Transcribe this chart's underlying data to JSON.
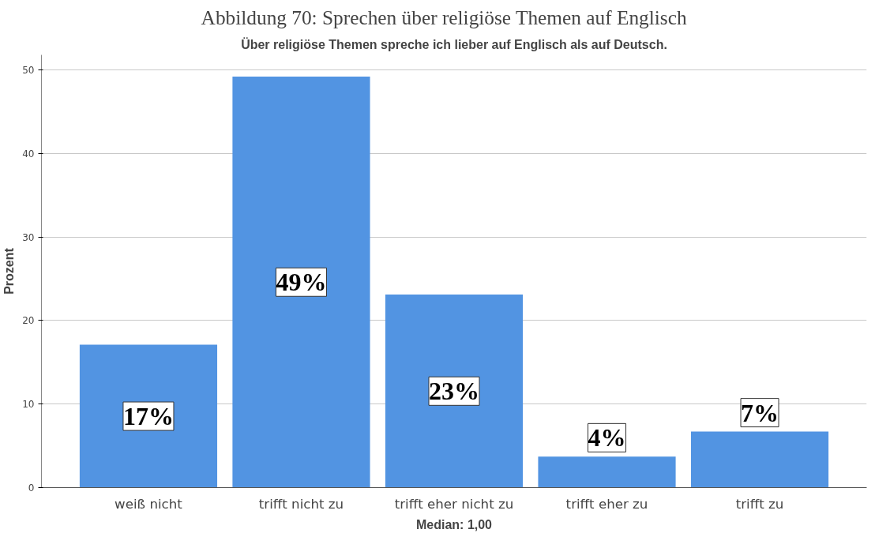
{
  "chart_data": {
    "type": "bar",
    "title": "Abbildung 70:     Sprechen über religiöse Themen auf Englisch",
    "subtitle": "Über religiöse Themen spreche ich lieber auf Englisch als auf Deutsch.",
    "xlabel": "Median: 1,00",
    "ylabel": "Prozent",
    "categories": [
      "weiß nicht",
      "trifft nicht zu",
      "trifft eher nicht zu",
      "trifft eher zu",
      "trifft zu"
    ],
    "values": [
      17.1,
      49.2,
      23.1,
      3.7,
      6.7
    ],
    "value_labels": [
      "17%",
      "49%",
      "23%",
      "4%",
      "7%"
    ],
    "color": "#5294e2",
    "ylim": [
      0,
      51.8
    ],
    "yticks": [
      0,
      10,
      20,
      30,
      40,
      50
    ],
    "grid": "y"
  }
}
